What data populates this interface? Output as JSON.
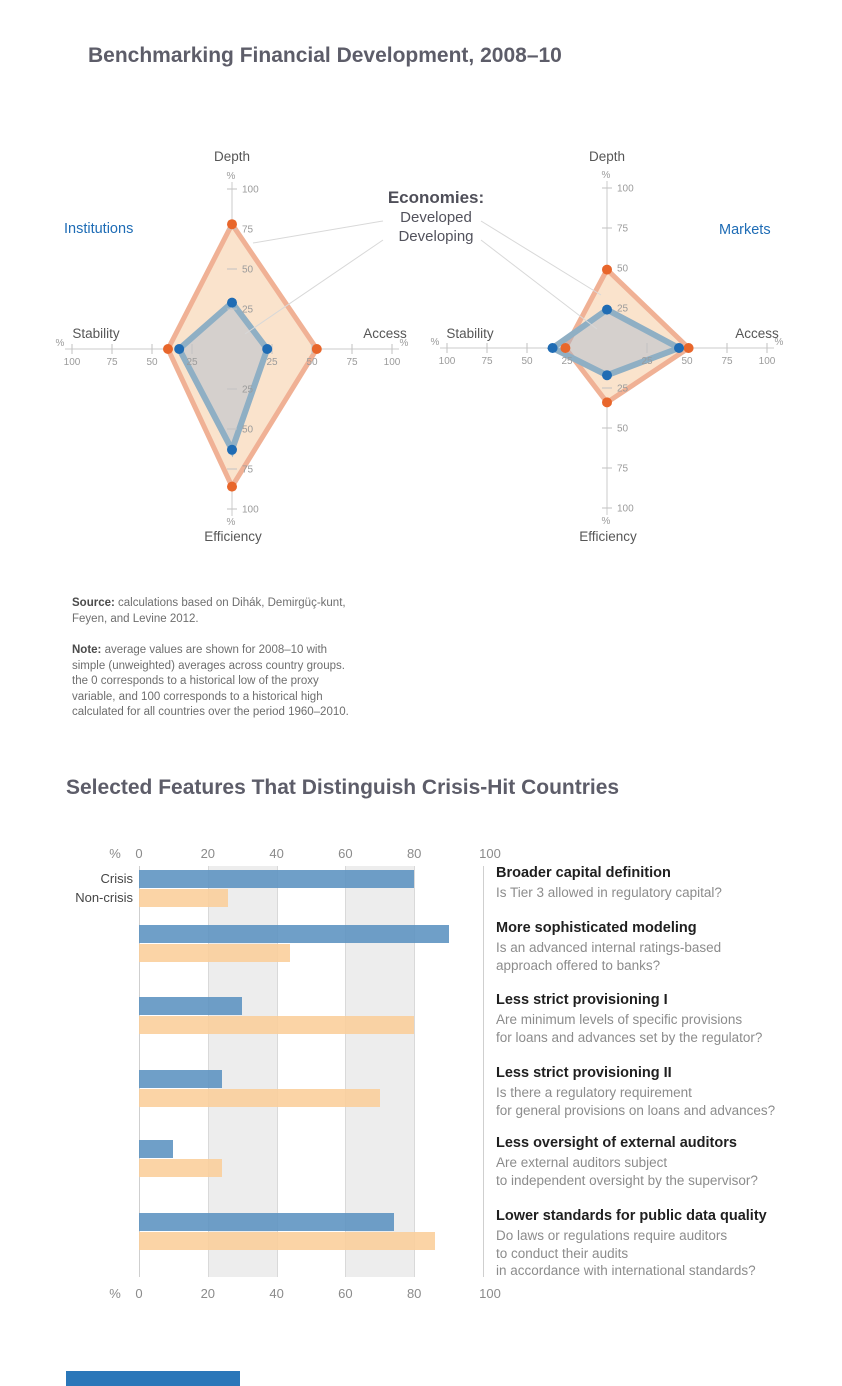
{
  "page": {
    "title1": "Benchmarking Financial Development, 2008–10",
    "title2": "Selected Features That Distinguish Crisis-Hit Countries"
  },
  "palette": {
    "developed_dot": "#E8662B",
    "developed_stroke": "#F0B195",
    "developed_fill": "#FAE3CC",
    "developing_dot": "#1F6CB4",
    "developing_stroke": "#8FAFC4",
    "developing_fill": "#90ACCF",
    "crisis_bar": "rgba(91,146,192,0.88)",
    "noncrisis_bar": "rgba(250,206,154,0.88)",
    "accent_blue": "#1E6CB5",
    "footer_bar": "#2B77B9"
  },
  "radar_section": {
    "legend": {
      "title": "Economies:",
      "items": [
        "Developed",
        "Developing"
      ]
    },
    "axes": {
      "top": "Depth",
      "right": "Access",
      "bottom": "Efficiency",
      "left": "Stability"
    },
    "percent_symbol": "%"
  },
  "source": {
    "label": "Source:",
    "lines": [
      "calculations based on Dihák, Demirgüç-kunt,",
      "Feyen, and Levine 2012."
    ]
  },
  "note": {
    "label": "Note:",
    "lines": [
      "average values are shown for 2008–10 with",
      "simple (unweighted) averages across country groups.",
      "the 0 corresponds to a historical low of the proxy",
      "variable, and 100 corresponds to a historical high",
      "calculated for all countries over the period 1960–2010."
    ]
  },
  "bar_section": {
    "descriptions": [
      [
        "Is Tier 3 allowed in regulatory capital?"
      ],
      [
        "Is an advanced internal ratings-based",
        "approach offered to banks?"
      ],
      [
        "Are minimum levels of specific provisions",
        "for loans and advances set by the regulator?"
      ],
      [
        "Is there a regulatory requirement",
        "for general provisions on loans and advances?"
      ],
      [
        "Are external auditors subject",
        "to independent oversight by the supervisor?"
      ],
      [
        "Do laws or regulations require auditors",
        "to conduct their audits",
        "in accordance with international standards?"
      ]
    ]
  },
  "chart_data": [
    {
      "type": "radar",
      "title": "Institutions",
      "axes": [
        "Depth",
        "Access",
        "Efficiency",
        "Stability"
      ],
      "scale": {
        "min": 0,
        "max": 100,
        "ticks": [
          25,
          50,
          75,
          100
        ],
        "unit": "%"
      },
      "series": [
        {
          "name": "Developed",
          "values": [
            78,
            53,
            86,
            40
          ]
        },
        {
          "name": "Developing",
          "values": [
            29,
            22,
            63,
            33
          ]
        }
      ]
    },
    {
      "type": "radar",
      "title": "Markets",
      "axes": [
        "Depth",
        "Access",
        "Efficiency",
        "Stability"
      ],
      "scale": {
        "min": 0,
        "max": 100,
        "ticks": [
          25,
          50,
          75,
          100
        ],
        "unit": "%"
      },
      "series": [
        {
          "name": "Developed",
          "values": [
            49,
            51,
            34,
            26
          ]
        },
        {
          "name": "Developing",
          "values": [
            24,
            45,
            17,
            34
          ]
        }
      ]
    },
    {
      "type": "bar",
      "orientation": "horizontal",
      "title": "Selected Features That Distinguish Crisis-Hit Countries",
      "unit": "%",
      "xlim": [
        0,
        100
      ],
      "xticks": [
        0,
        20,
        40,
        60,
        80,
        100
      ],
      "grid_bands": [
        [
          20,
          40
        ],
        [
          60,
          80
        ]
      ],
      "categories": [
        "Broader capital definition",
        "More sophisticated modeling",
        "Less strict provisioning I",
        "Less strict provisioning II",
        "Less oversight of external auditors",
        "Lower standards for public data quality"
      ],
      "series": [
        {
          "name": "Crisis",
          "values": [
            80,
            90,
            30,
            24,
            10,
            74
          ]
        },
        {
          "name": "Non-crisis",
          "values": [
            26,
            44,
            80,
            70,
            24,
            86
          ]
        }
      ]
    }
  ]
}
